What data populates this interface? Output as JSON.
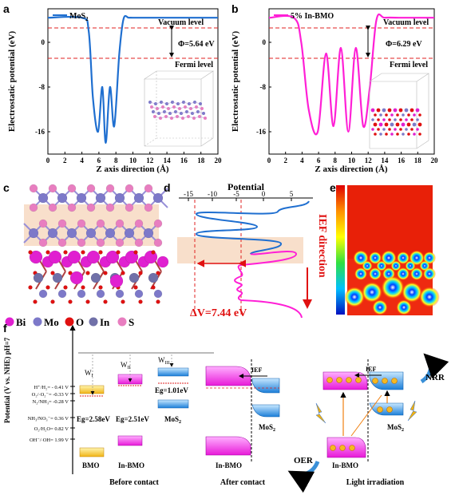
{
  "panel_a": {
    "letter": "a",
    "legend": "MoS",
    "legend_sub": "2",
    "vacuum": "Vacuum level",
    "fermi": "Fermi level",
    "phi": "Φ=5.64 eV",
    "xlabel": "Z axis direction (Å)",
    "ylabel": "Electrostatic potential (eV)",
    "xticks": [
      "0",
      "2",
      "4",
      "6",
      "8",
      "10",
      "12",
      "14",
      "16",
      "18",
      "20"
    ],
    "yticks": [
      "0",
      "-8",
      "-16"
    ],
    "series_color": "#1f6fd0"
  },
  "panel_b": {
    "letter": "b",
    "legend": "5% In-BMO",
    "vacuum": "Vacuum level",
    "fermi": "Fermi level",
    "phi": "Φ=6.29 eV",
    "xlabel": "Z axis direction (Å)",
    "ylabel": "Electrostatic potential (eV)",
    "xticks": [
      "0",
      "2",
      "4",
      "6",
      "8",
      "10",
      "12",
      "14",
      "16",
      "18",
      "20"
    ],
    "yticks": [
      "0",
      "-8",
      "-16"
    ],
    "series_color": "#ff1fd6"
  },
  "chart_data": [
    {
      "type": "line",
      "series": [
        {
          "name": "MoS2",
          "x": [
            0,
            4.0,
            4.8,
            5.3,
            5.9,
            6.4,
            6.8,
            7.3,
            7.8,
            8.4,
            8.9,
            9.5,
            10,
            12,
            14,
            16,
            18,
            20
          ],
          "values": [
            4.4,
            4.4,
            2,
            -10,
            -16,
            -8,
            -18,
            -8,
            -15,
            -2,
            4.2,
            4.4,
            4.4,
            4.4,
            4.4,
            4.4,
            4.4,
            4.4
          ]
        }
      ],
      "xlabel": "Z axis direction (Å)",
      "ylabel": "Electrostatic potential (eV)",
      "xlim": [
        0,
        20
      ],
      "ylim": [
        -20,
        6
      ]
    },
    {
      "type": "line",
      "series": [
        {
          "name": "5% In-BMO",
          "x": [
            0,
            3.0,
            3.9,
            4.8,
            5.9,
            6.9,
            7.8,
            8.7,
            9.6,
            10.5,
            11.4,
            12.2,
            13.0,
            14,
            16,
            18,
            20
          ],
          "values": [
            4.4,
            4.4,
            0,
            -12,
            -16,
            -2,
            -15,
            -1,
            -16,
            -1,
            -15,
            -8,
            4,
            4.4,
            4.4,
            4.4,
            4.4
          ]
        }
      ],
      "xlabel": "Z axis direction (Å)",
      "ylabel": "Electrostatic potential (eV)",
      "xlim": [
        0,
        20
      ],
      "ylim": [
        -20,
        6
      ]
    }
  ],
  "panel_c": {
    "letter": "c",
    "legend": [
      {
        "label": "Bi",
        "color": "#e020d0"
      },
      {
        "label": "Mo",
        "color": "#7d79c9"
      },
      {
        "label": "O",
        "color": "#e01010"
      },
      {
        "label": "In",
        "color": "#7070a8"
      },
      {
        "label": "S",
        "color": "#e87ec0"
      }
    ]
  },
  "panel_d": {
    "letter": "d",
    "title": "Potential",
    "ticks": [
      "-15",
      "-10",
      "-5",
      "0",
      "5"
    ],
    "ief": "IEF direction",
    "dv": "ΔV=7.44 eV"
  },
  "panel_e": {
    "letter": "e"
  },
  "panel_f": {
    "letter": "f",
    "yaxis": "Potential (V vs. NHE) pH=7",
    "levels": [
      "H⁺/H₂= - 0.41 V",
      "O₂/·O₂⁻= -0.33 V",
      "N₂/NH₃= -0.28 V",
      "NH₃/NO₃⁻= 0.36 V",
      "O₂/H₂O= 0.82 V",
      "OH⁻/·OH= 1.99 V"
    ],
    "w1": "W",
    "w1_sub": "I",
    "w2": "W",
    "w2_sub": "II",
    "w3": "W",
    "w3_sub": "III",
    "eg_bmo": "Eg=2.58eV",
    "eg_inbmo": "Eg=2.51eV",
    "eg_mos2": "Eg=1.01eV",
    "bmo": "BMO",
    "inbmo": "In-BMO",
    "mos2": "MoS",
    "mos2_sub": "2",
    "before": "Before contact",
    "after": "After contact",
    "light": "Light irradiation",
    "ief": "IEF",
    "nrr": "NRR",
    "oer": "OER"
  }
}
